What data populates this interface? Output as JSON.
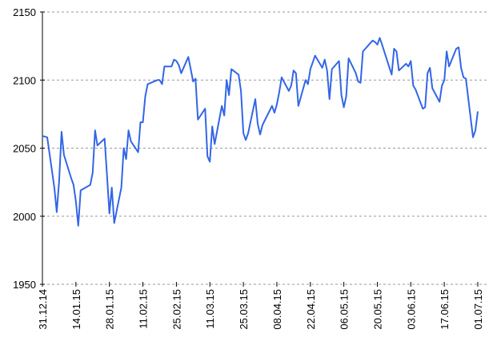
{
  "chart_data": {
    "type": "line",
    "x": [
      "2014-12-31",
      "2015-01-02",
      "2015-01-05",
      "2015-01-06",
      "2015-01-07",
      "2015-01-08",
      "2015-01-09",
      "2015-01-12",
      "2015-01-13",
      "2015-01-14",
      "2015-01-15",
      "2015-01-16",
      "2015-01-20",
      "2015-01-21",
      "2015-01-22",
      "2015-01-23",
      "2015-01-26",
      "2015-01-27",
      "2015-01-28",
      "2015-01-29",
      "2015-01-30",
      "2015-02-02",
      "2015-02-03",
      "2015-02-04",
      "2015-02-05",
      "2015-02-06",
      "2015-02-09",
      "2015-02-10",
      "2015-02-11",
      "2015-02-12",
      "2015-02-13",
      "2015-02-17",
      "2015-02-18",
      "2015-02-19",
      "2015-02-20",
      "2015-02-23",
      "2015-02-24",
      "2015-02-25",
      "2015-02-26",
      "2015-02-27",
      "2015-03-02",
      "2015-03-03",
      "2015-03-04",
      "2015-03-05",
      "2015-03-06",
      "2015-03-09",
      "2015-03-10",
      "2015-03-11",
      "2015-03-12",
      "2015-03-13",
      "2015-03-16",
      "2015-03-17",
      "2015-03-18",
      "2015-03-19",
      "2015-03-20",
      "2015-03-23",
      "2015-03-24",
      "2015-03-25",
      "2015-03-26",
      "2015-03-27",
      "2015-03-30",
      "2015-03-31",
      "2015-04-01",
      "2015-04-02",
      "2015-04-06",
      "2015-04-07",
      "2015-04-08",
      "2015-04-09",
      "2015-04-10",
      "2015-04-13",
      "2015-04-14",
      "2015-04-15",
      "2015-04-16",
      "2015-04-17",
      "2015-04-20",
      "2015-04-21",
      "2015-04-22",
      "2015-04-23",
      "2015-04-24",
      "2015-04-27",
      "2015-04-28",
      "2015-04-29",
      "2015-04-30",
      "2015-05-01",
      "2015-05-04",
      "2015-05-05",
      "2015-05-06",
      "2015-05-07",
      "2015-05-08",
      "2015-05-11",
      "2015-05-12",
      "2015-05-13",
      "2015-05-14",
      "2015-05-15",
      "2015-05-18",
      "2015-05-19",
      "2015-05-20",
      "2015-05-21",
      "2015-05-22",
      "2015-05-26",
      "2015-05-27",
      "2015-05-28",
      "2015-05-29",
      "2015-06-01",
      "2015-06-02",
      "2015-06-03",
      "2015-06-04",
      "2015-06-05",
      "2015-06-08",
      "2015-06-09",
      "2015-06-10",
      "2015-06-11",
      "2015-06-12",
      "2015-06-15",
      "2015-06-16",
      "2015-06-17",
      "2015-06-18",
      "2015-06-19",
      "2015-06-22",
      "2015-06-23",
      "2015-06-24",
      "2015-06-25",
      "2015-06-26",
      "2015-06-29",
      "2015-06-30",
      "2015-07-01"
    ],
    "series": [
      {
        "color": "#3366e6",
        "values": [
          2059,
          2058,
          2021,
          2003,
          2026,
          2062,
          2045,
          2028,
          2023,
          2011,
          1993,
          2019,
          2023,
          2032,
          2063,
          2052,
          2057,
          2030,
          2002,
          2021,
          1995,
          2021,
          2050,
          2042,
          2063,
          2055,
          2047,
          2069,
          2069,
          2088,
          2097,
          2100,
          2100,
          2097,
          2110,
          2110,
          2115,
          2114,
          2111,
          2105,
          2117,
          2108,
          2099,
          2101,
          2071,
          2079,
          2044,
          2040,
          2066,
          2053,
          2081,
          2074,
          2100,
          2089,
          2108,
          2104,
          2092,
          2061,
          2056,
          2061,
          2086,
          2068,
          2060,
          2067,
          2081,
          2076,
          2082,
          2091,
          2102,
          2092,
          2096,
          2107,
          2105,
          2081,
          2100,
          2097,
          2108,
          2113,
          2118,
          2109,
          2115,
          2107,
          2086,
          2108,
          2114,
          2089,
          2080,
          2088,
          2116,
          2105,
          2099,
          2098,
          2121,
          2123,
          2129,
          2128,
          2126,
          2131,
          2126,
          2104,
          2123,
          2121,
          2107,
          2112,
          2110,
          2114,
          2096,
          2093,
          2079,
          2080,
          2105,
          2109,
          2094,
          2084,
          2096,
          2100,
          2121,
          2110,
          2123,
          2124,
          2109,
          2102,
          2101,
          2058,
          2063,
          2077
        ]
      }
    ],
    "xlim": [
      "2014-12-31",
      "2015-07-01"
    ],
    "xticks": [
      {
        "value": "2014-12-31",
        "label": "31.12.14"
      },
      {
        "value": "2015-01-14",
        "label": "14.01.15"
      },
      {
        "value": "2015-01-28",
        "label": "28.01.15"
      },
      {
        "value": "2015-02-11",
        "label": "11.02.15"
      },
      {
        "value": "2015-02-25",
        "label": "25.02.15"
      },
      {
        "value": "2015-03-11",
        "label": "11.03.15"
      },
      {
        "value": "2015-03-25",
        "label": "25.03.15"
      },
      {
        "value": "2015-04-08",
        "label": "08.04.15"
      },
      {
        "value": "2015-04-22",
        "label": "22.04.15"
      },
      {
        "value": "2015-05-06",
        "label": "06.05.15"
      },
      {
        "value": "2015-05-20",
        "label": "20.05.15"
      },
      {
        "value": "2015-06-03",
        "label": "03.06.15"
      },
      {
        "value": "2015-06-17",
        "label": "17.06.15"
      },
      {
        "value": "2015-07-01",
        "label": "01.07.15"
      }
    ],
    "ylim": [
      1950,
      2150
    ],
    "yticks": [
      1950,
      2000,
      2050,
      2100,
      2150
    ],
    "grid": true
  }
}
